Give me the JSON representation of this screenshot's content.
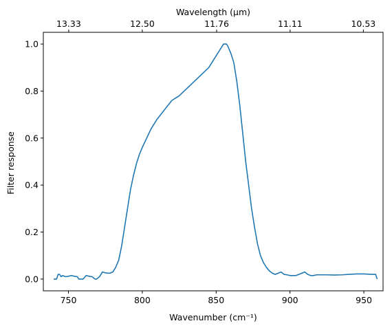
{
  "chart_data": {
    "type": "line",
    "title": "",
    "xlabel": "Wavenumber (cm⁻¹)",
    "ylabel": "Filter response",
    "top_xlabel": "Wavelength (μm)",
    "xlim": [
      733,
      963
    ],
    "ylim": [
      -0.05,
      1.05
    ],
    "x_ticks": [
      750,
      800,
      850,
      900,
      950
    ],
    "x_tick_labels": [
      "750",
      "800",
      "850",
      "900",
      "950"
    ],
    "y_ticks": [
      0.0,
      0.2,
      0.4,
      0.6,
      0.8,
      1.0
    ],
    "y_tick_labels": [
      "0.0",
      "0.2",
      "0.4",
      "0.6",
      "0.8",
      "1.0"
    ],
    "top_ticks": [
      13.33,
      12.5,
      11.76,
      11.11,
      10.53
    ],
    "top_tick_labels": [
      "13.33",
      "12.50",
      "11.76",
      "11.11",
      "10.53"
    ],
    "grid": false,
    "line_color": "#1f77b4",
    "series": [
      {
        "x": [
          740,
          742,
          743,
          744,
          745,
          746,
          748,
          750,
          752,
          754,
          756,
          757,
          759,
          760,
          762,
          764,
          766,
          768,
          769,
          771,
          773,
          776,
          778,
          780,
          782,
          784,
          786,
          788,
          790,
          792,
          794,
          796,
          798,
          800,
          803,
          806,
          810,
          815,
          820,
          825,
          830,
          835,
          840,
          845,
          850,
          853,
          855,
          857,
          858,
          860,
          862,
          864,
          866,
          868,
          870,
          872,
          874,
          876,
          878,
          880,
          882,
          884,
          886,
          888,
          890,
          892,
          894,
          896,
          898,
          900,
          902,
          904,
          906,
          908,
          910,
          912,
          914,
          916,
          918,
          920,
          925,
          930,
          935,
          940,
          945,
          950,
          955,
          958,
          959
        ],
        "y": [
          0.0,
          0.0,
          0.02,
          0.02,
          0.01,
          0.015,
          0.01,
          0.012,
          0.015,
          0.012,
          0.01,
          0.0,
          0.0,
          0.0,
          0.015,
          0.012,
          0.01,
          0.0,
          0.0,
          0.01,
          0.03,
          0.025,
          0.025,
          0.03,
          0.05,
          0.08,
          0.14,
          0.22,
          0.3,
          0.38,
          0.44,
          0.49,
          0.53,
          0.56,
          0.6,
          0.64,
          0.68,
          0.72,
          0.76,
          0.78,
          0.81,
          0.84,
          0.87,
          0.9,
          0.95,
          0.98,
          1.0,
          1.0,
          0.99,
          0.96,
          0.92,
          0.84,
          0.74,
          0.62,
          0.5,
          0.4,
          0.3,
          0.22,
          0.15,
          0.1,
          0.07,
          0.05,
          0.035,
          0.025,
          0.02,
          0.025,
          0.03,
          0.02,
          0.018,
          0.015,
          0.015,
          0.015,
          0.02,
          0.025,
          0.03,
          0.02,
          0.015,
          0.015,
          0.018,
          0.018,
          0.018,
          0.017,
          0.018,
          0.02,
          0.022,
          0.022,
          0.02,
          0.02,
          0.0
        ]
      }
    ]
  }
}
